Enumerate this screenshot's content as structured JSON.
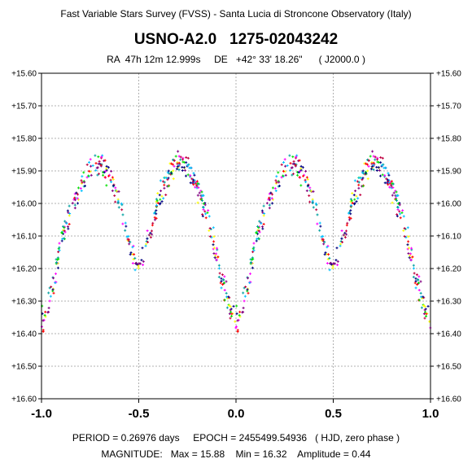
{
  "header": {
    "survey_title": "Fast Variable Stars Survey (FVSS) - Santa Lucia di Stroncone Observatory (Italy)",
    "star_name": "USNO-A2.0   1275-02043242",
    "coordinates": "RA  47h 12m 12.999s     DE   +42° 33' 18.26\"      ( J2000.0 )"
  },
  "footer": {
    "line1": "PERIOD = 0.26976 days     EPOCH = 2455499.54936   ( HJD, zero phase )",
    "line2": "MAGNITUDE:   Max = 15.88    Min = 16.32    Amplitude = 0.44"
  },
  "chart_data": {
    "type": "scatter",
    "title": "USNO-A2.0   1275-02043242",
    "xlabel": "",
    "ylabel": "",
    "xlim": [
      -1.0,
      1.0
    ],
    "ylim": [
      15.6,
      16.6
    ],
    "y_inverted": true,
    "grid": true,
    "x_ticks": [
      "-1.0",
      "-0.5",
      "0.0",
      "0.5",
      "1.0"
    ],
    "y_ticks": [
      "+15.60",
      "+15.70",
      "+15.80",
      "+15.90",
      "+16.00",
      "+16.10",
      "+16.20",
      "+16.30",
      "+16.40",
      "+16.50",
      "+16.60"
    ],
    "period_days": 0.26976,
    "max_mag": 15.88,
    "min_mag": 16.32,
    "amplitude": 0.44,
    "light_curve": {
      "phase": [
        0.0,
        0.05,
        0.1,
        0.15,
        0.2,
        0.25,
        0.3,
        0.35,
        0.4,
        0.45,
        0.5,
        0.55,
        0.6,
        0.65,
        0.7,
        0.75,
        0.8,
        0.85,
        0.9,
        0.95,
        1.0
      ],
      "magnitude": [
        16.36,
        16.28,
        16.12,
        16.02,
        15.95,
        15.89,
        15.88,
        15.92,
        16.0,
        16.12,
        16.2,
        16.1,
        16.0,
        15.92,
        15.88,
        15.89,
        15.95,
        16.04,
        16.16,
        16.28,
        16.36
      ]
    },
    "series_colors": [
      "#000080",
      "#ff00ff",
      "#ff0000",
      "#00c0ff",
      "#00e000",
      "#ffff00",
      "#800080",
      "#00a0a0",
      "#c00040"
    ]
  }
}
